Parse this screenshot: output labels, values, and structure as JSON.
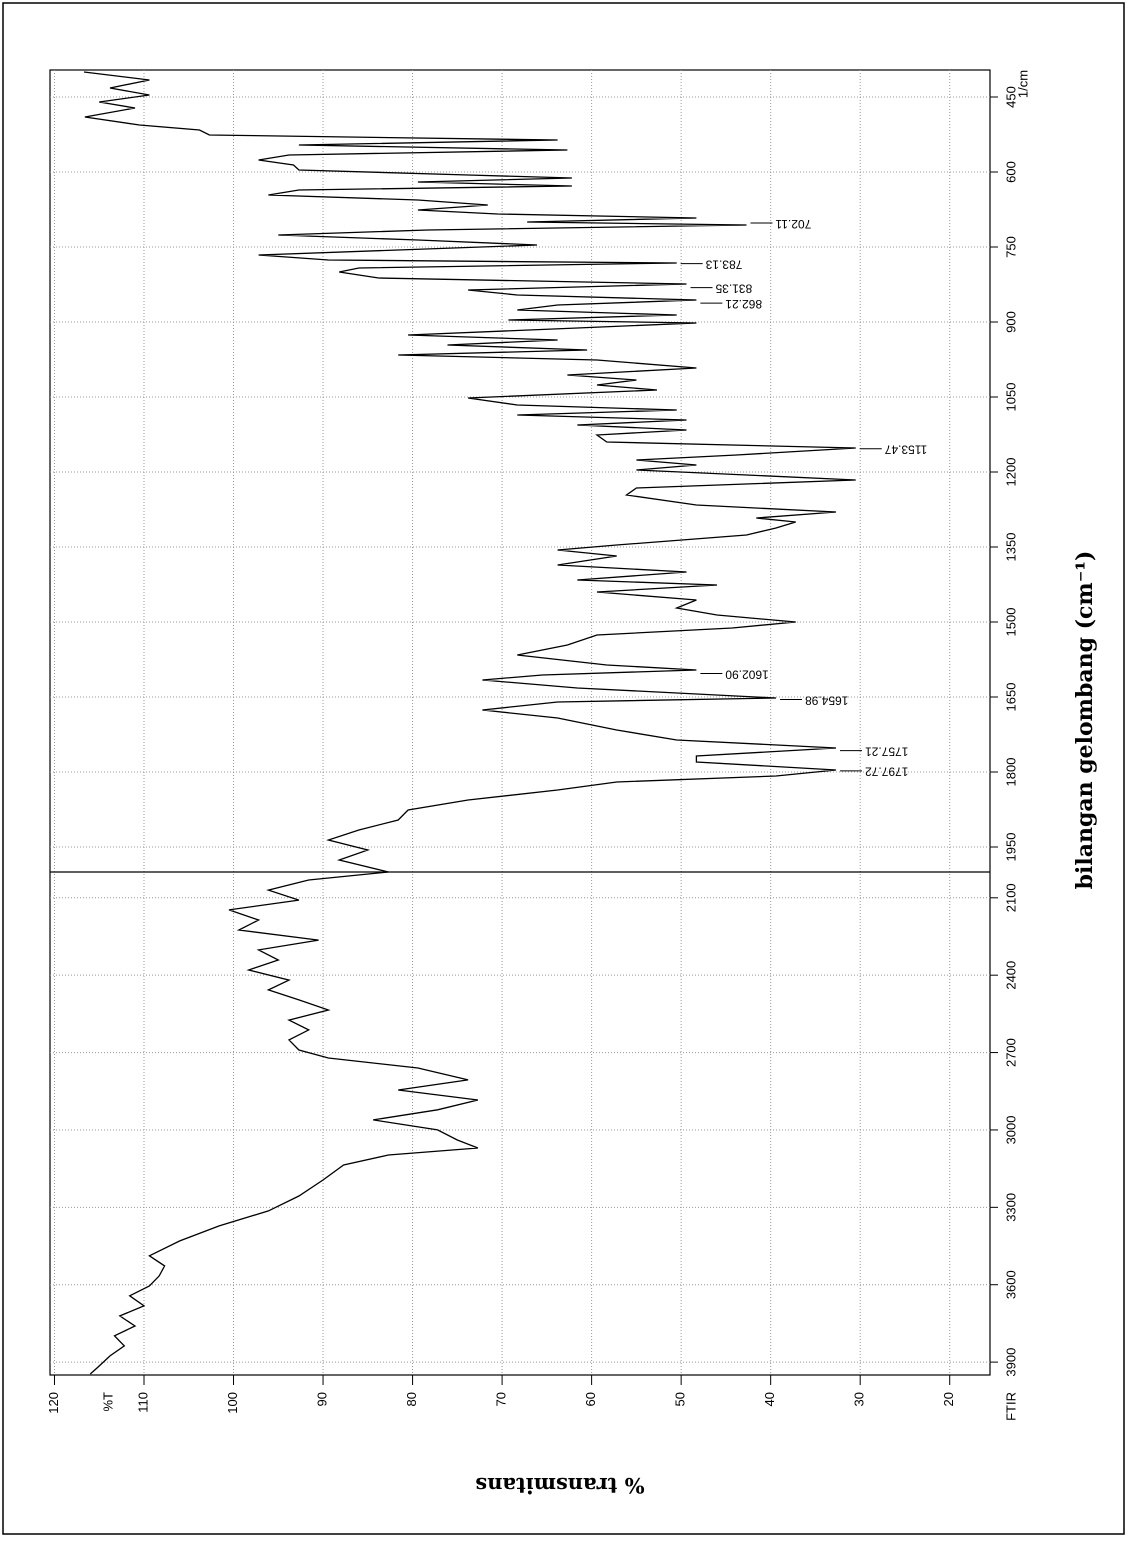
{
  "chart_data": {
    "type": "line",
    "ylabel": "% transmitans",
    "xlabel": "bilangan gelombang (cm⁻¹)",
    "y_unit_label": "%T",
    "x_unit_label": "1/cm",
    "instrument_label": "FTIR",
    "ylim": [
      120.5,
      15.5
    ],
    "yticks": [
      120,
      110,
      100,
      90,
      80,
      70,
      60,
      50,
      40,
      30,
      20
    ],
    "xlim": [
      396,
      3950
    ],
    "x_scale_break": 2000,
    "xticks": [
      450,
      600,
      750,
      900,
      1050,
      1200,
      1350,
      1500,
      1650,
      1800,
      1950,
      2100,
      2400,
      2700,
      3000,
      3300,
      3600,
      3900
    ],
    "grid": true,
    "x": [
      400,
      416,
      432,
      446,
      460,
      472,
      490,
      506,
      516,
      526,
      536,
      546,
      556,
      566,
      576,
      586,
      596,
      606,
      612,
      620,
      628,
      636,
      646,
      656,
      666,
      676,
      684,
      692,
      700,
      706,
      716,
      726,
      736,
      746,
      756,
      766,
      776,
      782,
      792,
      800,
      812,
      824,
      836,
      846,
      856,
      866,
      876,
      886,
      896,
      902,
      912,
      926,
      936,
      946,
      956,
      966,
      976,
      992,
      1006,
      1016,
      1026,
      1036,
      1052,
      1066,
      1076,
      1086,
      1096,
      1106,
      1116,
      1126,
      1140,
      1152,
      1166,
      1176,
      1186,
      1196,
      1206,
      1216,
      1232,
      1246,
      1266,
      1280,
      1292,
      1300,
      1312,
      1326,
      1346,
      1356,
      1368,
      1386,
      1400,
      1416,
      1426,
      1440,
      1456,
      1472,
      1486,
      1500,
      1512,
      1526,
      1546,
      1566,
      1586,
      1596,
      1606,
      1616,
      1632,
      1652,
      1660,
      1676,
      1692,
      1716,
      1736,
      1752,
      1768,
      1780,
      1796,
      1808,
      1820,
      1836,
      1856,
      1876,
      1896,
      1916,
      1936,
      1956,
      1976,
      2000,
      2031,
      2070,
      2109,
      2147,
      2186,
      2225,
      2264,
      2302,
      2341,
      2380,
      2419,
      2457,
      2496,
      2535,
      2574,
      2612,
      2651,
      2690,
      2721,
      2760,
      2806,
      2845,
      2884,
      2922,
      2961,
      3000,
      3039,
      3070,
      3097,
      3136,
      3194,
      3256,
      3314,
      3372,
      3430,
      3488,
      3527,
      3566,
      3605,
      3643,
      3682,
      3721,
      3760,
      3798,
      3837,
      3876,
      3915,
      3946
    ],
    "series": [
      {
        "color": "#000000",
        "values": [
          116.7,
          109.4,
          113.8,
          109.4,
          115,
          111,
          116.6,
          110.5,
          103.8,
          102.7,
          63.8,
          92.7,
          62.7,
          93.8,
          97.2,
          93.3,
          92.7,
          73.8,
          62.2,
          79.4,
          62.2,
          92.7,
          96.1,
          79.4,
          71.6,
          79.4,
          70.5,
          48.3,
          67.2,
          42.7,
          78.3,
          95,
          79.4,
          66.1,
          81.6,
          97.2,
          89.4,
          50.5,
          86,
          88.2,
          83.8,
          49.4,
          73.8,
          68.3,
          48.3,
          63.8,
          68.3,
          50.5,
          69.3,
          48.3,
          61.6,
          80.5,
          63.8,
          76.1,
          60.5,
          81.6,
          59.4,
          48.3,
          62.7,
          55,
          59.4,
          52.7,
          73.8,
          68.3,
          50.5,
          68.3,
          49.4,
          61.6,
          49.4,
          59.4,
          58.3,
          30.5,
          43.8,
          55,
          48.3,
          55,
          42.7,
          30.5,
          55,
          56.1,
          48.3,
          32.7,
          41.6,
          37.2,
          39.4,
          42.7,
          57.2,
          63.8,
          57.2,
          63.8,
          49.4,
          61.6,
          46,
          59.4,
          48.3,
          50.5,
          46,
          37.2,
          44.3,
          59.4,
          62.7,
          68.3,
          58.3,
          48.3,
          65.5,
          72.2,
          61.6,
          39.4,
          63.8,
          72.2,
          63.8,
          57.2,
          50.5,
          32.7,
          48.3,
          48.3,
          32.7,
          39.4,
          57.2,
          63.8,
          73.8,
          80.5,
          81.6,
          86,
          89.4,
          85,
          88.2,
          82.7,
          91.6,
          96.1,
          92.7,
          100.5,
          97.2,
          99.4,
          90.5,
          97.2,
          95,
          98.3,
          93.8,
          96.1,
          92.7,
          89.4,
          93.8,
          91.6,
          93.8,
          92.7,
          89.4,
          79.4,
          73.8,
          81.6,
          72.7,
          77.2,
          84.4,
          77.2,
          75,
          72.7,
          82.7,
          87.7,
          90,
          92.7,
          96.1,
          101.6,
          106,
          109.4,
          107.7,
          108.3,
          109.4,
          111.6,
          110,
          112.7,
          111,
          113.3,
          112.2,
          113.8,
          115,
          116
        ]
      }
    ],
    "annotations": [
      {
        "value": 702.11,
        "label": "702.11"
      },
      {
        "value": 783.13,
        "label": "783.13"
      },
      {
        "value": 831.35,
        "label": "831.35"
      },
      {
        "value": 862.21,
        "label": "862.21"
      },
      {
        "value": 1153.47,
        "label": "1153.47"
      },
      {
        "value": 1602.9,
        "label": "1602.90"
      },
      {
        "value": 1654.98,
        "label": "1654.98"
      },
      {
        "value": 1757.21,
        "label": "1757.21"
      },
      {
        "value": 1797.72,
        "label": "1797.72"
      }
    ]
  }
}
